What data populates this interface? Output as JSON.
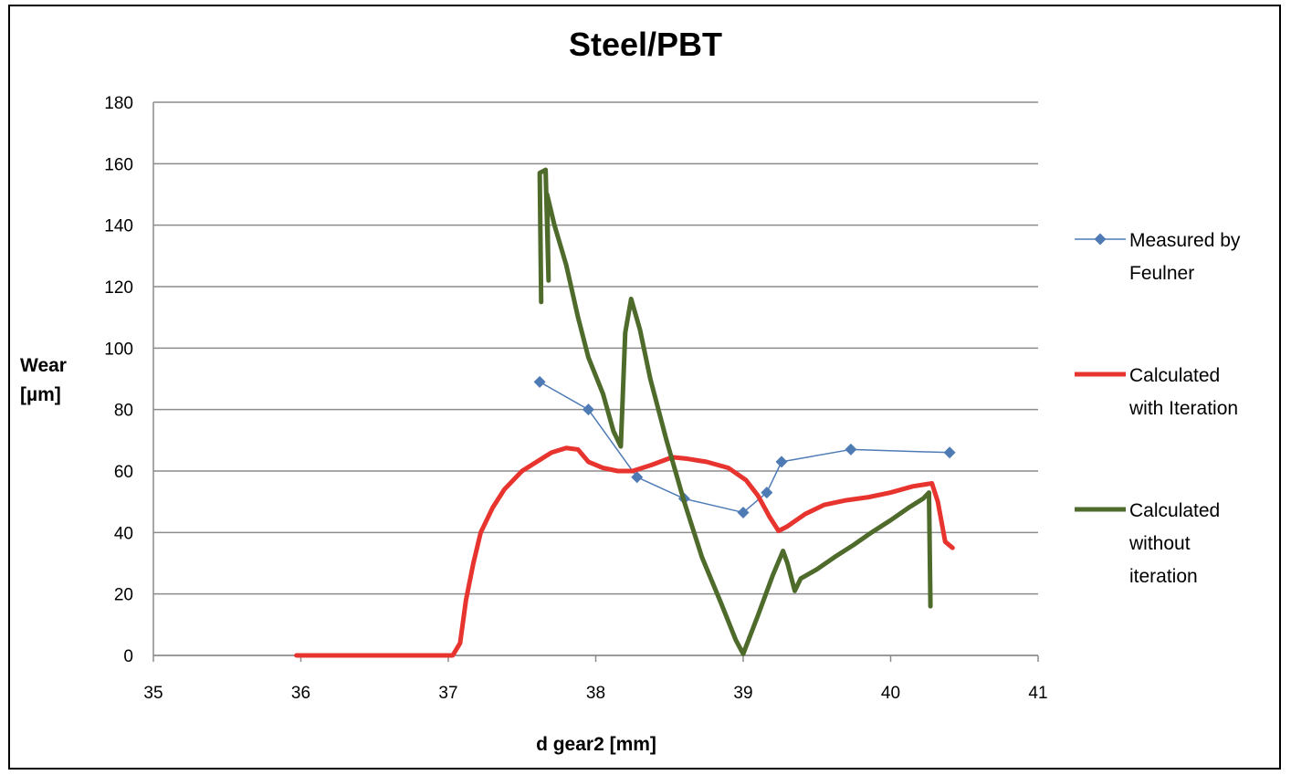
{
  "chart_data": {
    "type": "line",
    "title": "Steel/PBT",
    "xlabel": "d gear2 [mm]",
    "ylabel": "Wear\n[µm]",
    "xlim": [
      35,
      41
    ],
    "ylim": [
      0,
      180
    ],
    "xticks": [
      "35",
      "36",
      "37",
      "38",
      "39",
      "40",
      "41"
    ],
    "yticks": [
      "0",
      "20",
      "40",
      "60",
      "80",
      "100",
      "120",
      "140",
      "160",
      "180"
    ],
    "grid": "horizontal",
    "legend_position": "right",
    "series": [
      {
        "name": "Measured by Feulner",
        "legend_lines": [
          "Measured by",
          "Feulner"
        ],
        "color": "#4F7BB5",
        "marker": "diamond",
        "points": [
          [
            37.62,
            89
          ],
          [
            37.95,
            80
          ],
          [
            38.28,
            58
          ],
          [
            38.6,
            51
          ],
          [
            39.0,
            46.5
          ],
          [
            39.16,
            53
          ],
          [
            39.26,
            63
          ],
          [
            39.73,
            67
          ],
          [
            40.4,
            66
          ]
        ]
      },
      {
        "name": "Calculated with Iteration",
        "legend_lines": [
          "Calculated",
          "with Iteration"
        ],
        "color": "#E8342E",
        "marker": "none",
        "points": [
          [
            35.97,
            0
          ],
          [
            37.03,
            0
          ],
          [
            37.08,
            4
          ],
          [
            37.12,
            18
          ],
          [
            37.17,
            30
          ],
          [
            37.22,
            40
          ],
          [
            37.3,
            48
          ],
          [
            37.38,
            54
          ],
          [
            37.5,
            60
          ],
          [
            37.6,
            63
          ],
          [
            37.7,
            66
          ],
          [
            37.8,
            67.5
          ],
          [
            37.88,
            67
          ],
          [
            37.95,
            63
          ],
          [
            38.05,
            61
          ],
          [
            38.15,
            60
          ],
          [
            38.25,
            60
          ],
          [
            38.38,
            62
          ],
          [
            38.52,
            64.5
          ],
          [
            38.62,
            64
          ],
          [
            38.75,
            63
          ],
          [
            38.9,
            61
          ],
          [
            39.02,
            57
          ],
          [
            39.1,
            52
          ],
          [
            39.18,
            45
          ],
          [
            39.24,
            40.5
          ],
          [
            39.3,
            42
          ],
          [
            39.42,
            46
          ],
          [
            39.55,
            49
          ],
          [
            39.7,
            50.5
          ],
          [
            39.85,
            51.5
          ],
          [
            40.0,
            53
          ],
          [
            40.15,
            55
          ],
          [
            40.28,
            56
          ],
          [
            40.32,
            50
          ],
          [
            40.37,
            37
          ],
          [
            40.42,
            35
          ]
        ]
      },
      {
        "name": "Calculated without iteration",
        "legend_lines": [
          "Calculated",
          "without",
          "iteration"
        ],
        "color": "#4E6B2B",
        "marker": "none",
        "points": [
          [
            37.63,
            115
          ],
          [
            37.62,
            157
          ],
          [
            37.66,
            158
          ],
          [
            37.68,
            122
          ],
          [
            37.67,
            150
          ],
          [
            37.72,
            140
          ],
          [
            37.8,
            127
          ],
          [
            37.88,
            110
          ],
          [
            37.95,
            97
          ],
          [
            38.05,
            85
          ],
          [
            38.12,
            73
          ],
          [
            38.17,
            68
          ],
          [
            38.2,
            105
          ],
          [
            38.24,
            116
          ],
          [
            38.3,
            106
          ],
          [
            38.37,
            90
          ],
          [
            38.48,
            70
          ],
          [
            38.6,
            50
          ],
          [
            38.72,
            32
          ],
          [
            38.85,
            17
          ],
          [
            38.95,
            5
          ],
          [
            39.0,
            0.5
          ],
          [
            39.1,
            13
          ],
          [
            39.2,
            26
          ],
          [
            39.27,
            34
          ],
          [
            39.3,
            30
          ],
          [
            39.35,
            21
          ],
          [
            39.39,
            25
          ],
          [
            39.5,
            28
          ],
          [
            39.62,
            32
          ],
          [
            39.75,
            36
          ],
          [
            39.87,
            40
          ],
          [
            40.0,
            44
          ],
          [
            40.12,
            48
          ],
          [
            40.22,
            51
          ],
          [
            40.26,
            53
          ],
          [
            40.27,
            16
          ]
        ]
      }
    ]
  }
}
